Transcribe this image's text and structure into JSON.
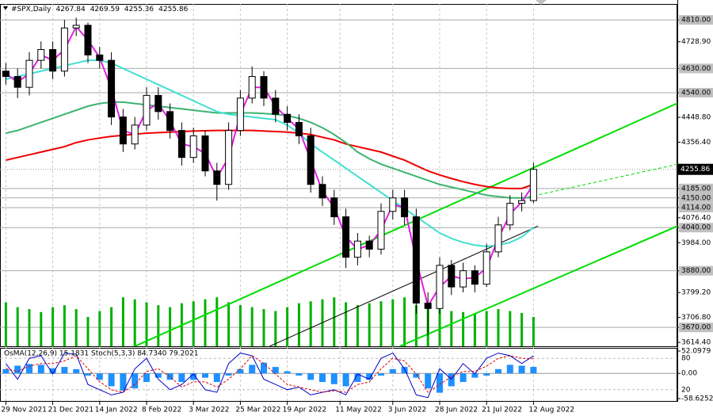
{
  "chart_data": {
    "type": "candlestick",
    "symbol": "#SPX,Daily",
    "ohlc": [
      4267.84,
      4269.59,
      4255.36,
      4255.86
    ],
    "candles": {
      "open": [
        4620,
        4600,
        4560,
        4660,
        4700,
        4620,
        4780,
        4790,
        4680,
        4660,
        4450,
        4350,
        4420,
        4530,
        4470,
        4400,
        4300,
        4380,
        4250,
        4200,
        4400,
        4520,
        4600,
        4520,
        4460,
        4430,
        4380,
        4200,
        4150,
        4080,
        3930,
        3990,
        3960,
        4100,
        4150,
        4080,
        3760,
        3740,
        3900,
        3820,
        3880,
        3830,
        3950,
        4050,
        4130,
        4140
      ],
      "high": [
        4650,
        4630,
        4690,
        4730,
        4730,
        4810,
        4818,
        4800,
        4710,
        4690,
        4480,
        4450,
        4560,
        4560,
        4500,
        4430,
        4410,
        4400,
        4280,
        4430,
        4550,
        4637,
        4620,
        4550,
        4490,
        4460,
        4410,
        4230,
        4180,
        4110,
        4020,
        4010,
        4130,
        4180,
        4180,
        4110,
        3800,
        3930,
        3920,
        3910,
        3900,
        3980,
        4080,
        4160,
        4170,
        4280
      ],
      "low": [
        4570,
        4520,
        4530,
        4630,
        4590,
        4600,
        4750,
        4650,
        4630,
        4420,
        4320,
        4330,
        4400,
        4440,
        4370,
        4270,
        4280,
        4230,
        4140,
        4180,
        4380,
        4500,
        4490,
        4430,
        4400,
        4350,
        4170,
        4120,
        4050,
        3890,
        3900,
        3930,
        3940,
        4070,
        4050,
        3720,
        3640,
        3720,
        3790,
        3800,
        3800,
        3820,
        3930,
        4030,
        4100,
        4130
      ],
      "close": [
        4600,
        4560,
        4660,
        4700,
        4620,
        4780,
        4790,
        4680,
        4660,
        4450,
        4350,
        4420,
        4530,
        4470,
        4400,
        4300,
        4380,
        4250,
        4200,
        4400,
        4520,
        4600,
        4520,
        4460,
        4430,
        4380,
        4200,
        4150,
        4080,
        3930,
        3990,
        3960,
        4100,
        4150,
        4080,
        3760,
        3740,
        3900,
        3820,
        3880,
        3830,
        3950,
        4050,
        4130,
        4140,
        4255.86
      ],
      "up_color": "#ffffff",
      "down_color": "#000000",
      "edge_color": "#000000"
    },
    "ylim": [
      3600,
      4869
    ],
    "yticks": [
      {
        "value": 4810,
        "label": "4810.00"
      },
      {
        "value": 4728.9,
        "label": "4728.90"
      },
      {
        "value": 4630,
        "label": "4630.00"
      },
      {
        "value": 4540,
        "label": "4540.00"
      },
      {
        "value": 4448.8,
        "label": "4448.80"
      },
      {
        "value": 4356.4,
        "label": "4356.40"
      },
      {
        "value": 4185,
        "label": "4185.00"
      },
      {
        "value": 4150,
        "label": "4150.00"
      },
      {
        "value": 4114,
        "label": "4114.00"
      },
      {
        "value": 4076.4,
        "label": "4076.40"
      },
      {
        "value": 4040,
        "label": "4040.00"
      },
      {
        "value": 3984,
        "label": "3984.00"
      },
      {
        "value": 3880,
        "label": "3880.00"
      },
      {
        "value": 3799.2,
        "label": "3799.20"
      },
      {
        "value": 3706.8,
        "label": "3706.80"
      },
      {
        "value": 3670,
        "label": "3670.00"
      },
      {
        "value": 3614.4,
        "label": "3614.40"
      }
    ],
    "levels": {
      "values": [
        4810,
        4630,
        4540,
        4185,
        4150,
        4114,
        4040,
        3880,
        3670
      ],
      "color": "#a9a9a9"
    },
    "moving_averages": [
      {
        "color": "#ee0000",
        "values": [
          4290,
          4300,
          4310,
          4320,
          4330,
          4340,
          4355,
          4365,
          4372,
          4378,
          4382,
          4386,
          4390,
          4392,
          4394,
          4396,
          4398,
          4399,
          4400,
          4400,
          4400,
          4400,
          4398,
          4396,
          4394,
          4390,
          4385,
          4375,
          4365,
          4350,
          4340,
          4330,
          4320,
          4305,
          4290,
          4270,
          4250,
          4235,
          4222,
          4210,
          4200,
          4192,
          4187,
          4185,
          4185,
          4200
        ]
      },
      {
        "color": "#3cb371",
        "values": [
          4390,
          4400,
          4415,
          4430,
          4445,
          4460,
          4475,
          4490,
          4500,
          4505,
          4505,
          4500,
          4495,
          4490,
          4485,
          4480,
          4475,
          4470,
          4465,
          4465,
          4465,
          4465,
          4463,
          4460,
          4455,
          4445,
          4430,
          4410,
          4385,
          4355,
          4320,
          4295,
          4275,
          4260,
          4245,
          4230,
          4215,
          4200,
          4190,
          4180,
          4170,
          4160,
          4155,
          4150,
          4150,
          4152
        ]
      },
      {
        "color": "#40e0d0",
        "values": [
          4590,
          4600,
          4610,
          4620,
          4630,
          4640,
          4650,
          4660,
          4660,
          4650,
          4630,
          4610,
          4590,
          4570,
          4550,
          4530,
          4510,
          4490,
          4470,
          4460,
          4455,
          4450,
          4445,
          4440,
          4420,
          4390,
          4350,
          4320,
          4290,
          4260,
          4230,
          4200,
          4170,
          4140,
          4110,
          4080,
          4050,
          4020,
          4000,
          3985,
          3975,
          3970,
          3975,
          3985,
          4005,
          4040
        ]
      },
      {
        "color": "#e020e0",
        "values": [
          4610,
          4580,
          4610,
          4680,
          4660,
          4700,
          4785,
          4735,
          4670,
          4555,
          4400,
          4385,
          4475,
          4500,
          4435,
          4350,
          4340,
          4315,
          4225,
          4300,
          4460,
          4560,
          4560,
          4490,
          4445,
          4405,
          4290,
          4175,
          4115,
          4005,
          3960,
          3975,
          4030,
          4125,
          4115,
          3920,
          3750,
          3820,
          3860,
          3850,
          3855,
          3890,
          4000,
          4090,
          4135,
          4200
        ]
      }
    ],
    "volume": {
      "color": "#00b000",
      "ylim": [
        0,
        350
      ],
      "values": [
        45,
        40,
        38,
        35,
        40,
        42,
        38,
        30,
        36,
        40,
        50,
        48,
        45,
        42,
        40,
        44,
        46,
        48,
        50,
        45,
        42,
        40,
        38,
        36,
        40,
        44,
        46,
        48,
        50,
        45,
        42,
        44,
        46,
        48,
        50,
        42,
        40,
        38,
        36,
        35,
        34,
        36,
        38,
        36,
        34,
        30
      ]
    },
    "trendlines": [
      {
        "color": "#00dd00",
        "width": 2,
        "dash": false,
        "x": [
          11.0,
          57.3
        ],
        "y": [
          3600,
          4501.5
        ]
      },
      {
        "color": "#00dd00",
        "width": 2,
        "dash": false,
        "x": [
          33.6,
          57.3
        ],
        "y": [
          3600,
          4046
        ]
      },
      {
        "color": "#00dd00",
        "width": 1,
        "dash": true,
        "x": [
          44.1,
          57.3
        ],
        "y": [
          4149,
          4275
        ]
      },
      {
        "color": "#000000",
        "width": 1,
        "dash": false,
        "x": [
          22.5,
          45.4
        ],
        "y": [
          3600,
          4046
        ]
      }
    ],
    "xticks": [
      {
        "value": 0,
        "label": "29 Nov 2021"
      },
      {
        "value": 4,
        "label": "21 Dec 2021"
      },
      {
        "value": 8,
        "label": "14 Jan 2022"
      },
      {
        "value": 12,
        "label": "8 Feb 2022"
      },
      {
        "value": 16,
        "label": "3 Mar 2022"
      },
      {
        "value": 20,
        "label": "25 Mar 2022"
      },
      {
        "value": 24,
        "label": "19 Apr 2022"
      },
      {
        "value": 28.5,
        "label": "11 May 2022"
      },
      {
        "value": 33,
        "label": "3 Jun 2022"
      },
      {
        "value": 37,
        "label": "28 Jun 2022"
      },
      {
        "value": 41,
        "label": "21 Jul 2022"
      },
      {
        "value": 45,
        "label": "12 Aug 2022"
      }
    ],
    "oscillator": {
      "label": "OsMA(12,26,9) 15.1831 Stoch(5,3,3) 84.7340 79.2021",
      "osma": {
        "color": "#1e90ff",
        "ylim": [
          -58.6252,
          52.0979
        ],
        "yticks": [
          52.0979,
          {
            "value": 0,
            "label": "0.00"
          },
          -58.6252
        ],
        "values": [
          10,
          18,
          22,
          20,
          12,
          15,
          10,
          -5,
          -15,
          -30,
          -40,
          -35,
          -20,
          -10,
          -15,
          -20,
          -15,
          -10,
          -20,
          -5,
          10,
          20,
          25,
          15,
          5,
          -5,
          -15,
          -20,
          -25,
          -30,
          -20,
          -15,
          -5,
          10,
          15,
          -10,
          -35,
          -45,
          -30,
          -20,
          -10,
          -5,
          10,
          20,
          18,
          15.1831
        ]
      },
      "stoch": {
        "ylim": [
          0,
          100
        ],
        "yticks": [
          80,
          20
        ],
        "main": {
          "color": "#0000cc",
          "values": [
            70,
            40,
            80,
            85,
            50,
            90,
            88,
            30,
            20,
            10,
            15,
            60,
            80,
            40,
            20,
            30,
            50,
            20,
            15,
            70,
            90,
            85,
            40,
            30,
            20,
            25,
            10,
            15,
            20,
            10,
            50,
            40,
            80,
            90,
            60,
            10,
            5,
            60,
            40,
            70,
            50,
            80,
            90,
            85,
            70,
            84.734
          ]
        },
        "signal": {
          "color": "#dd0000",
          "values": [
            60,
            55,
            65,
            70,
            70,
            75,
            85,
            60,
            35,
            20,
            15,
            30,
            55,
            60,
            45,
            25,
            35,
            35,
            25,
            40,
            60,
            85,
            70,
            50,
            30,
            25,
            20,
            15,
            18,
            15,
            30,
            35,
            60,
            80,
            75,
            50,
            15,
            30,
            45,
            55,
            55,
            65,
            80,
            85,
            80,
            79.2021
          ]
        }
      }
    }
  }
}
